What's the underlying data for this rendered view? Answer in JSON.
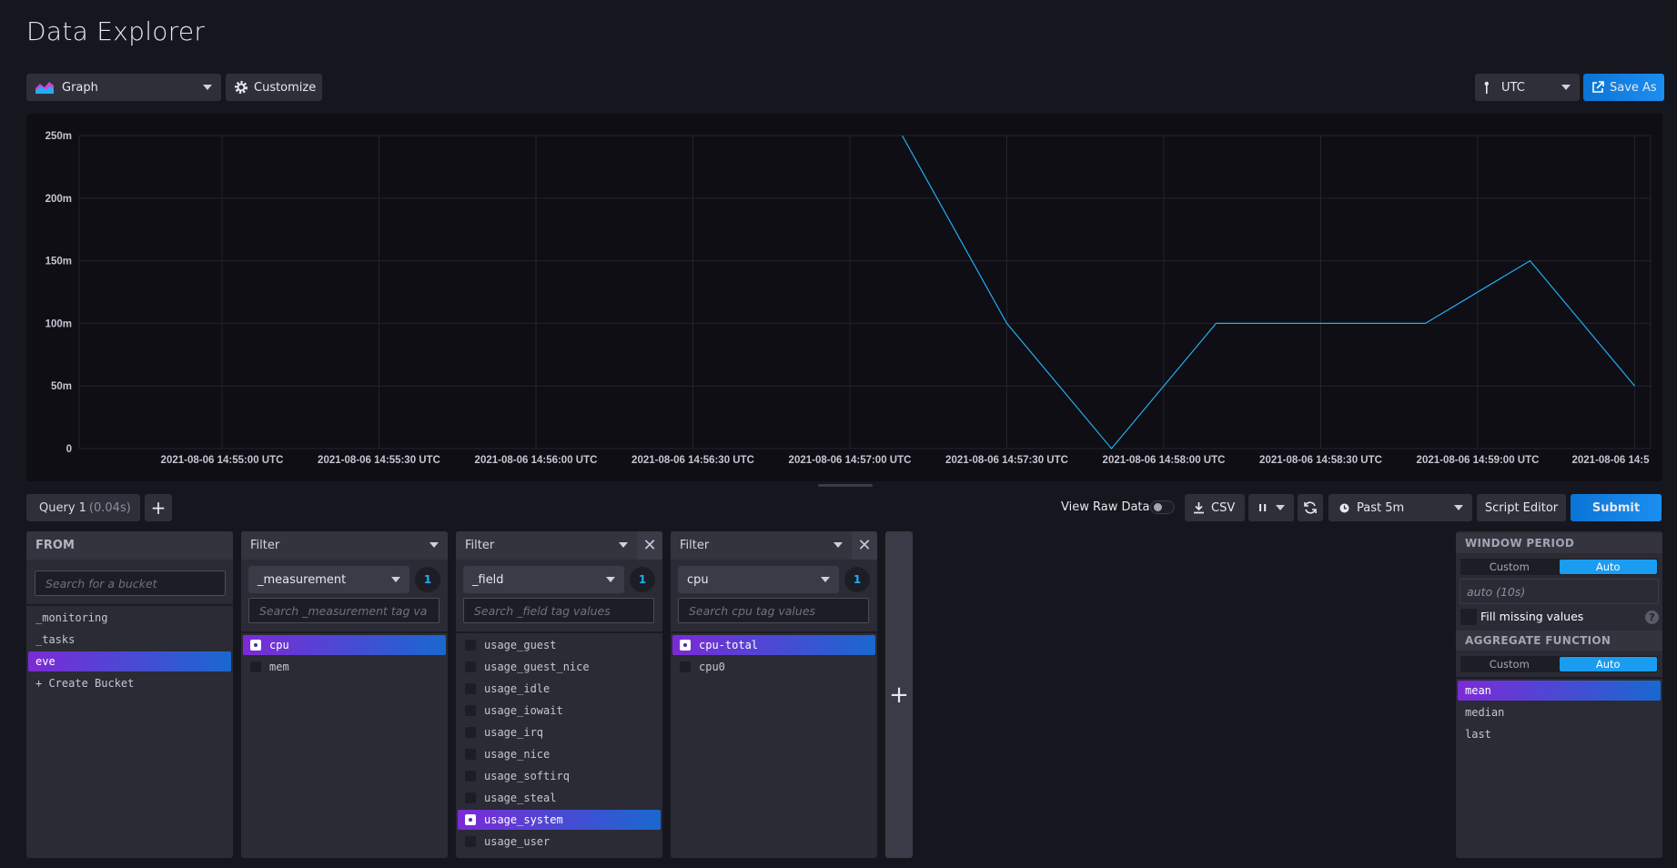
{
  "page": {
    "title": "Data Explorer"
  },
  "toolbar": {
    "vis_type": "Graph",
    "customize": "Customize",
    "timezone": "UTC",
    "save_as": "Save As"
  },
  "chart_data": {
    "type": "line",
    "yticks": [
      "250m",
      "200m",
      "150m",
      "100m",
      "50m",
      "0"
    ],
    "ylim": [
      0,
      250
    ],
    "xticks": [
      "2021-08-06 14:55:00 UTC",
      "2021-08-06 14:55:30 UTC",
      "2021-08-06 14:56:00 UTC",
      "2021-08-06 14:56:30 UTC",
      "2021-08-06 14:57:00 UTC",
      "2021-08-06 14:57:30 UTC",
      "2021-08-06 14:58:00 UTC",
      "2021-08-06 14:58:30 UTC",
      "2021-08-06 14:59:00 UTC",
      "2021-08-06 14:5"
    ],
    "series": [
      {
        "x": [
          "2021-08-06 14:57:10 UTC",
          "2021-08-06 14:57:30 UTC",
          "2021-08-06 14:57:50 UTC",
          "2021-08-06 14:58:10 UTC",
          "2021-08-06 14:58:30 UTC",
          "2021-08-06 14:58:50 UTC",
          "2021-08-06 14:59:10 UTC",
          "2021-08-06 14:59:30 UTC"
        ],
        "values": [
          250,
          100,
          0,
          100,
          100,
          100,
          150,
          50
        ]
      }
    ],
    "color": "#22adf6",
    "grid": true
  },
  "query_bar": {
    "tab_label": "Query 1",
    "tab_time": "(0.04s)",
    "add": "+",
    "view_raw": "View Raw Data",
    "csv": "CSV",
    "pause": "II",
    "time_range": "Past 5m",
    "script_editor": "Script Editor",
    "submit": "Submit"
  },
  "from": {
    "header": "FROM",
    "search_placeholder": "Search for a bucket",
    "items": [
      "_monitoring",
      "_tasks",
      "eve",
      "+ Create Bucket"
    ],
    "selected": "eve"
  },
  "filters": [
    {
      "header": "Filter",
      "key": "_measurement",
      "count": "1",
      "search_placeholder": "Search _measurement tag va",
      "items": [
        "cpu",
        "mem"
      ],
      "selected": "cpu"
    },
    {
      "header": "Filter",
      "key": "_field",
      "count": "1",
      "search_placeholder": "Search _field tag values",
      "items": [
        "usage_guest",
        "usage_guest_nice",
        "usage_idle",
        "usage_iowait",
        "usage_irq",
        "usage_nice",
        "usage_softirq",
        "usage_steal",
        "usage_system",
        "usage_user"
      ],
      "selected": "usage_system"
    },
    {
      "header": "Filter",
      "key": "cpu",
      "count": "1",
      "search_placeholder": "Search cpu tag values",
      "items": [
        "cpu-total",
        "cpu0"
      ],
      "selected": "cpu-total"
    }
  ],
  "add_filter": "+",
  "window_period": {
    "header": "WINDOW PERIOD",
    "custom": "Custom",
    "auto": "Auto",
    "value": "auto (10s)",
    "fill_missing": "Fill missing values"
  },
  "aggregate": {
    "header": "AGGREGATE FUNCTION",
    "custom": "Custom",
    "auto": "Auto",
    "items": [
      "mean",
      "median",
      "last"
    ],
    "selected": "mean"
  }
}
